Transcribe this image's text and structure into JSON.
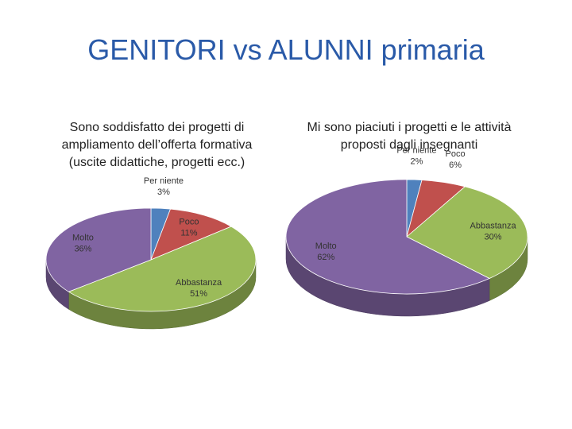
{
  "title": "GENITORI vs ALUNNI primaria",
  "chart_data": [
    {
      "type": "pie",
      "title": "Sono soddisfatto dei progetti di ampliamento dell’offerta formativa (uscite didattiche, progetti ecc.)",
      "categories": [
        "Per niente",
        "Poco",
        "Abbastanza",
        "Molto"
      ],
      "values": [
        3,
        11,
        51,
        36
      ],
      "value_labels": [
        "3%",
        "11%",
        "51%",
        "36%"
      ],
      "colors": [
        "#4f81bd",
        "#c0504d",
        "#9bbb59",
        "#8064a2"
      ]
    },
    {
      "type": "pie",
      "title": "Mi sono piaciuti i progetti e le attività proposti dagli insegnanti",
      "categories": [
        "Per niente",
        "Poco",
        "Abbastanza",
        "Molto"
      ],
      "values": [
        2,
        6,
        30,
        62
      ],
      "value_labels": [
        "2%",
        "6%",
        "30%",
        "62%"
      ],
      "colors": [
        "#4f81bd",
        "#c0504d",
        "#9bbb59",
        "#8064a2"
      ]
    }
  ]
}
